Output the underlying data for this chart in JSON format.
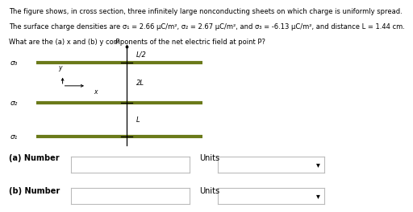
{
  "line1": "The figure shows, in cross section, three infinitely large nonconducting sheets on which charge is uniformly spread.",
  "line2": "The surface charge densities are σ₁ = 2.66 μC/m², σ₂ = 2.67 μC/m², and σ₃ = -6.13 μC/m², and distance L = 1.44 cm.",
  "line3": "What are the (a) x and (b) y components of the net electric field at point P?",
  "sheet_color": "#6b7a1a",
  "sheet_lw": 3.0,
  "bg_color": "#ffffff",
  "text_fontsize": 6.0,
  "sigma_fontsize": 6.5,
  "label_fontsize": 6.0
}
